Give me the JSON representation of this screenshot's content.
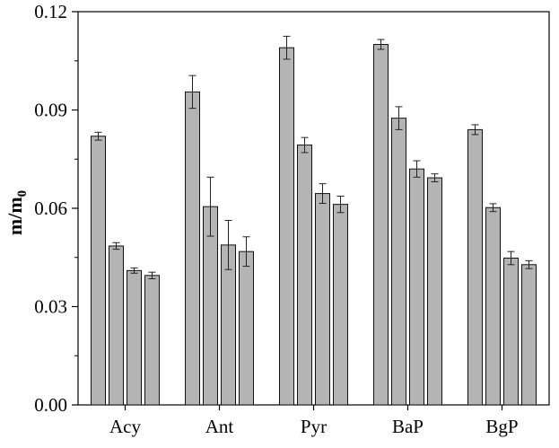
{
  "chart_data": {
    "type": "bar",
    "title": "",
    "xlabel": "",
    "ylabel": "m/m",
    "ylabel_subscript": "0",
    "ylim": [
      0,
      0.12
    ],
    "yticks": [
      "0.00",
      "0.03",
      "0.06",
      "0.09",
      "0.12"
    ],
    "grid": false,
    "legend": "none",
    "bar_color": "#b4b4b4",
    "categories": [
      "Acy",
      "Ant",
      "Pyr",
      "BaP",
      "BgP"
    ],
    "series": [
      {
        "values": [
          0.082,
          0.0955,
          0.109,
          0.11,
          0.084
        ],
        "errors": [
          0.0012,
          0.005,
          0.0035,
          0.0015,
          0.0015
        ]
      },
      {
        "values": [
          0.0485,
          0.0605,
          0.0793,
          0.0875,
          0.0602
        ],
        "errors": [
          0.001,
          0.009,
          0.0023,
          0.0035,
          0.0012
        ]
      },
      {
        "values": [
          0.041,
          0.0488,
          0.0645,
          0.072,
          0.0448
        ],
        "errors": [
          0.0008,
          0.0075,
          0.003,
          0.0025,
          0.002
        ]
      },
      {
        "values": [
          0.0395,
          0.0468,
          0.0612,
          0.0693,
          0.0428
        ],
        "errors": [
          0.001,
          0.0045,
          0.0025,
          0.0012,
          0.0012
        ]
      }
    ]
  }
}
